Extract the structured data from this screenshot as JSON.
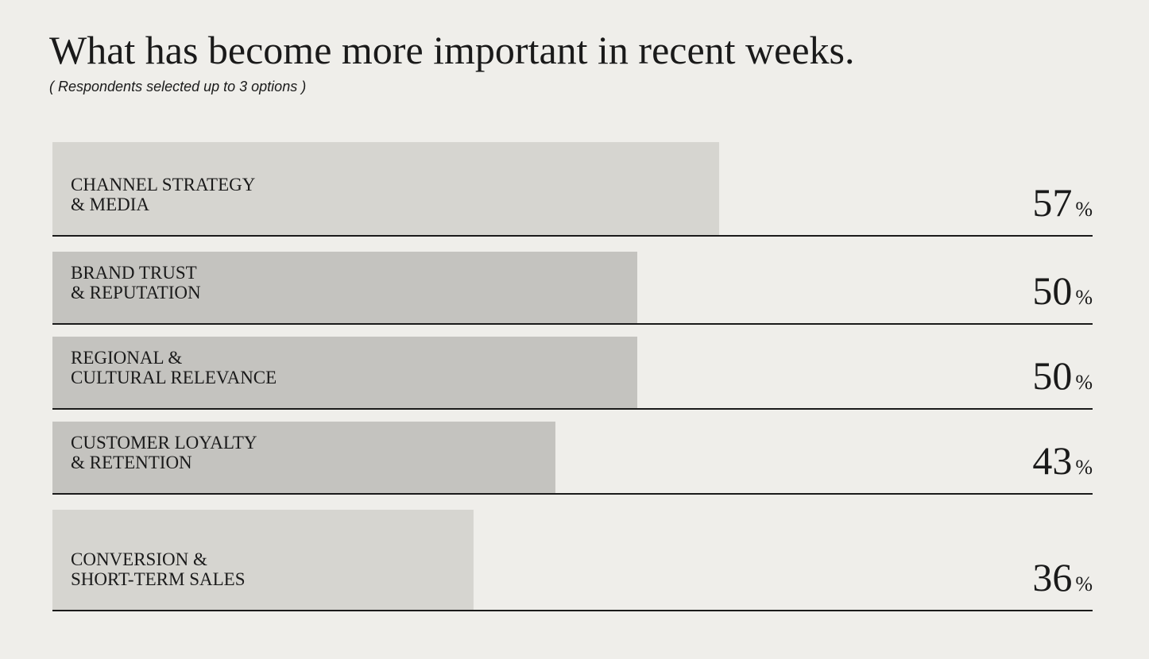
{
  "chart_data": {
    "type": "bar",
    "title": "What has become more important in recent weeks.",
    "subtitle": "( Respondents selected up to 3 options )",
    "categories": [
      [
        "CHANNEL STRATEGY",
        "& MEDIA"
      ],
      [
        "BRAND TRUST",
        "& REPUTATION"
      ],
      [
        "REGIONAL &",
        "CULTURAL RELEVANCE"
      ],
      [
        "CUSTOMER LOYALTY",
        "& RETENTION"
      ],
      [
        "CONVERSION &",
        "SHORT-TERM SALES"
      ]
    ],
    "values": [
      57,
      50,
      50,
      43,
      36
    ],
    "unit": "%",
    "colors": [
      "#d6d5d0",
      "#c4c3bf",
      "#c4c3bf",
      "#c4c3bf",
      "#d6d5d0"
    ]
  }
}
